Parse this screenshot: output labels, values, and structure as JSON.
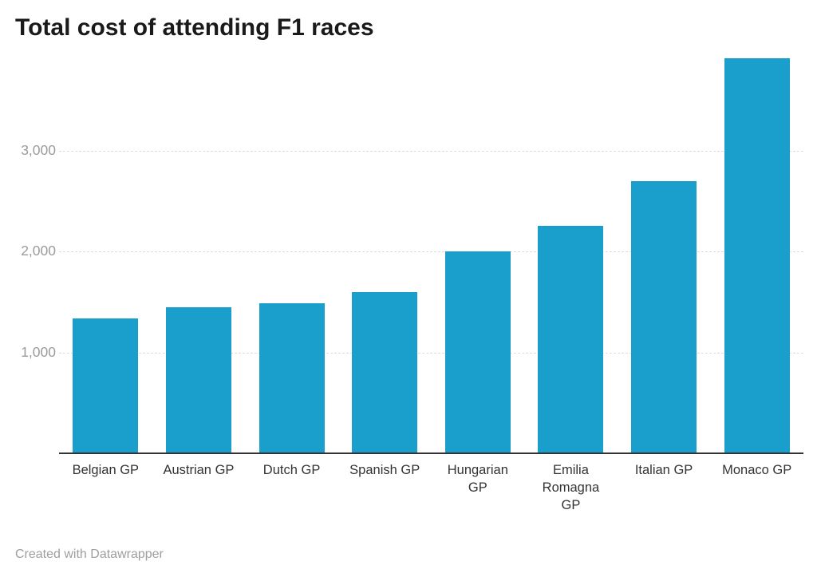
{
  "title": "Total cost of attending F1 races",
  "footer": {
    "attribution": "Created with Datawrapper"
  },
  "colors": {
    "background": "#ffffff",
    "bar": "#1a9fcc",
    "axis_line": "#333333",
    "gridline": "#dcdcdc",
    "ytick_label": "#9b9b9b",
    "xtick_label": "#333333",
    "title_text": "#1a1a1a",
    "footer_text": "#9e9e9e"
  },
  "chart_data": {
    "type": "bar",
    "title": "Total cost of attending F1 races",
    "categories": [
      "Belgian GP",
      "Austrian GP",
      "Dutch GP",
      "Spanish GP",
      "Hungarian GP",
      "Emilia Romagna GP",
      "Italian GP",
      "Monaco GP"
    ],
    "values": [
      1340,
      1450,
      1490,
      1600,
      2000,
      2260,
      2700,
      3920
    ],
    "x_tick_display": [
      "Belgian GP",
      "Austrian GP",
      "Dutch GP",
      "Spanish GP",
      "Hungarian\nGP",
      "Emilia\nRomagna\nGP",
      "Italian GP",
      "Monaco GP"
    ],
    "xlabel": "",
    "ylabel": "",
    "ylim": [
      0,
      3950
    ],
    "yticks": [
      1000,
      2000,
      3000
    ],
    "ytick_labels": [
      "1,000",
      "2,000",
      "3,000"
    ],
    "grid": "horizontal",
    "legend": "none"
  }
}
